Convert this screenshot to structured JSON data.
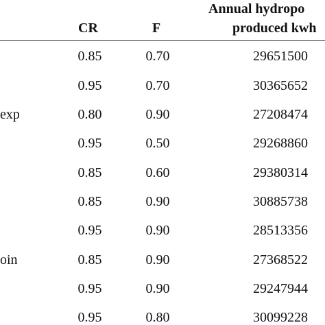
{
  "table": {
    "headers": {
      "cr": "CR",
      "f": "F",
      "annual_line1": "Annual    hydropo",
      "annual_line2": "produced kwh"
    },
    "row_labels": [
      "exp",
      "oin"
    ],
    "rows": [
      {
        "cr": "0.85",
        "f": "0.70",
        "annual": "29651500"
      },
      {
        "cr": "0.95",
        "f": "0.70",
        "annual": "30365652"
      },
      {
        "cr": "0.80",
        "f": "0.90",
        "annual": "27208474"
      },
      {
        "cr": "0.95",
        "f": "0.50",
        "annual": "29268860"
      },
      {
        "cr": "0.85",
        "f": "0.60",
        "annual": "29380314"
      },
      {
        "cr": "0.85",
        "f": "0.90",
        "annual": "30885738"
      },
      {
        "cr": "0.95",
        "f": "0.90",
        "annual": "28513356"
      },
      {
        "cr": "0.85",
        "f": "0.90",
        "annual": "27368522"
      },
      {
        "cr": "0.95",
        "f": "0.90",
        "annual": "29247944"
      },
      {
        "cr": "0.95",
        "f": "0.80",
        "annual": "30099228"
      }
    ]
  }
}
